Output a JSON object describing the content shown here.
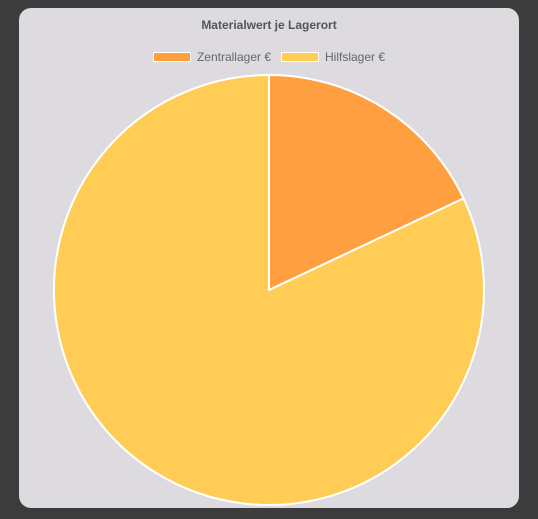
{
  "chart_data": {
    "type": "pie",
    "title": "Materialwert je Lagerort",
    "legend_position": "top",
    "series": [
      {
        "name": "Zentrallager €",
        "value": 18,
        "color": "#ff9f40"
      },
      {
        "name": "Hilfslager €",
        "value": 82,
        "color": "#ffcd56"
      }
    ]
  }
}
